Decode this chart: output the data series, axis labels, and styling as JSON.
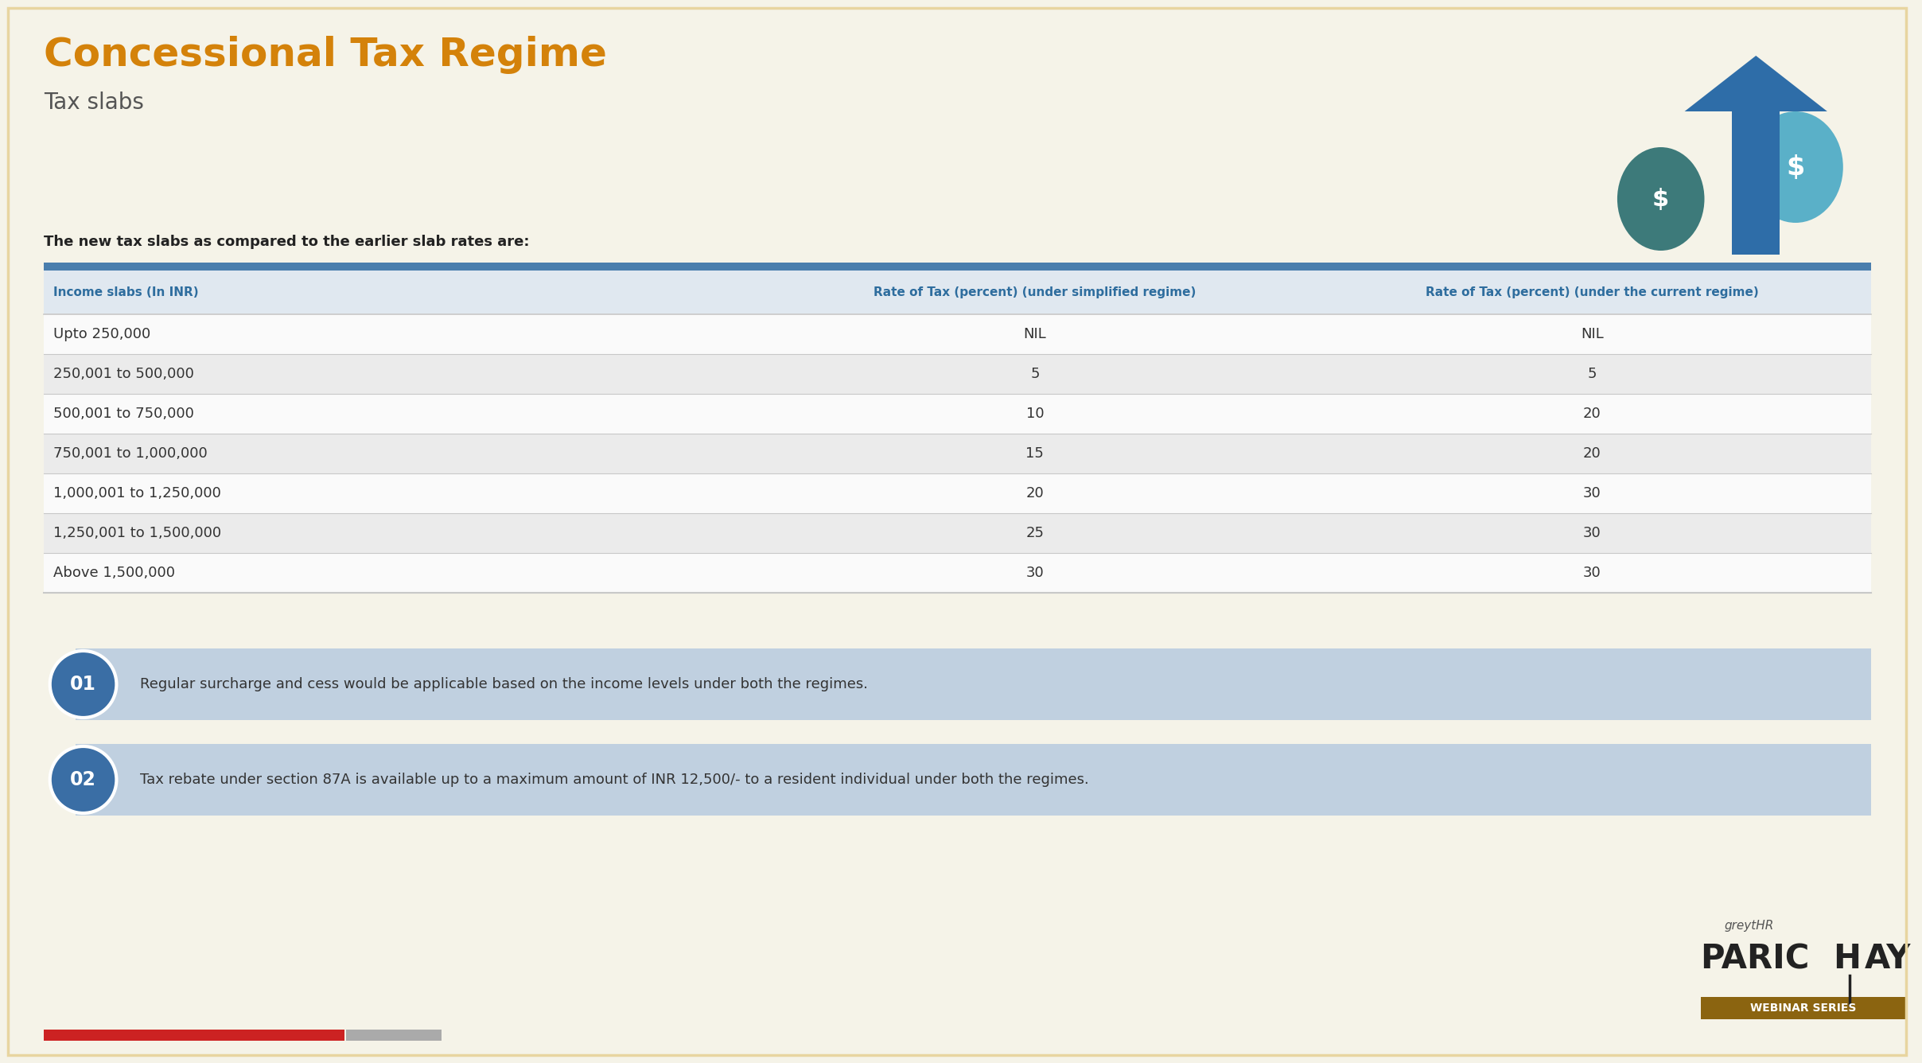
{
  "title": "Concessional Tax Regime",
  "subtitle": "Tax slabs",
  "intro_text": "The new tax slabs as compared to the earlier slab rates are:",
  "col_headers": [
    "Income slabs (In INR)",
    "Rate of Tax (percent) (under simplified regime)",
    "Rate of Tax (percent) (under the current regime)"
  ],
  "rows": [
    [
      "Upto 250,000",
      "NIL",
      "NIL"
    ],
    [
      "250,001 to 500,000",
      "5",
      "5"
    ],
    [
      "500,001 to 750,000",
      "10",
      "20"
    ],
    [
      "750,001 to 1,000,000",
      "15",
      "20"
    ],
    [
      "1,000,001 to 1,250,000",
      "20",
      "30"
    ],
    [
      "1,250,001 to 1,500,000",
      "25",
      "30"
    ],
    [
      "Above 1,500,000",
      "30",
      "30"
    ]
  ],
  "note1_num": "01",
  "note1_text": "Regular surcharge and cess would be applicable based on the income levels under both the regimes.",
  "note2_num": "02",
  "note2_text": "Tax rebate under section 87A is available up to a maximum amount of INR 12,500/- to a resident individual under both the regimes.",
  "bg_color": "#F5F3E8",
  "title_color": "#D4820A",
  "subtitle_color": "#555555",
  "header_bar_color": "#4A7EAD",
  "col_header_text_color": "#2E6D9E",
  "row_separator_color": "#C8C8C8",
  "note_bg_color": "#C0D0E0",
  "note_circle_color_top": "#3A6EA5",
  "note_circle_color_bottom": "#4A85BE",
  "note_text_color": "#333333",
  "intro_text_color": "#222222",
  "table_alt_row_color": "#EBEBEB",
  "table_row_color": "#FAFAFA",
  "border_color": "#E8D5A0",
  "col_header_bg": "#E0E8F0"
}
